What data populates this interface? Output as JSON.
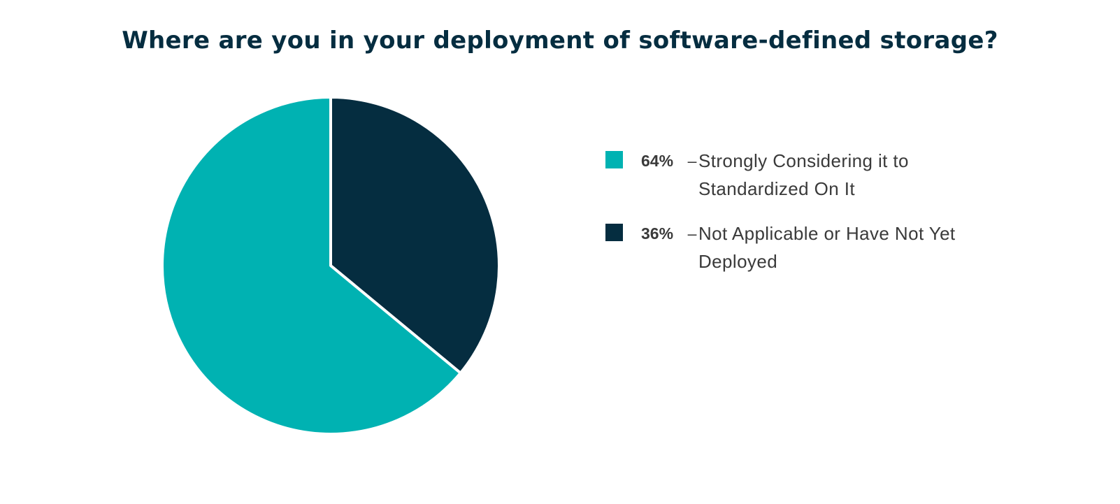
{
  "chart_data": {
    "type": "pie",
    "title": "Where are you in your deployment of software-defined storage?",
    "slices": [
      {
        "value": 64,
        "pct_label": "64%",
        "label": "Strongly Considering it to Standardized On It",
        "color": "#00b2b2"
      },
      {
        "value": 36,
        "pct_label": "36%",
        "label": "Not Applicable or Have Not Yet Deployed",
        "color": "#052d40"
      }
    ],
    "legend_position": "right"
  },
  "legend_separator": "–"
}
